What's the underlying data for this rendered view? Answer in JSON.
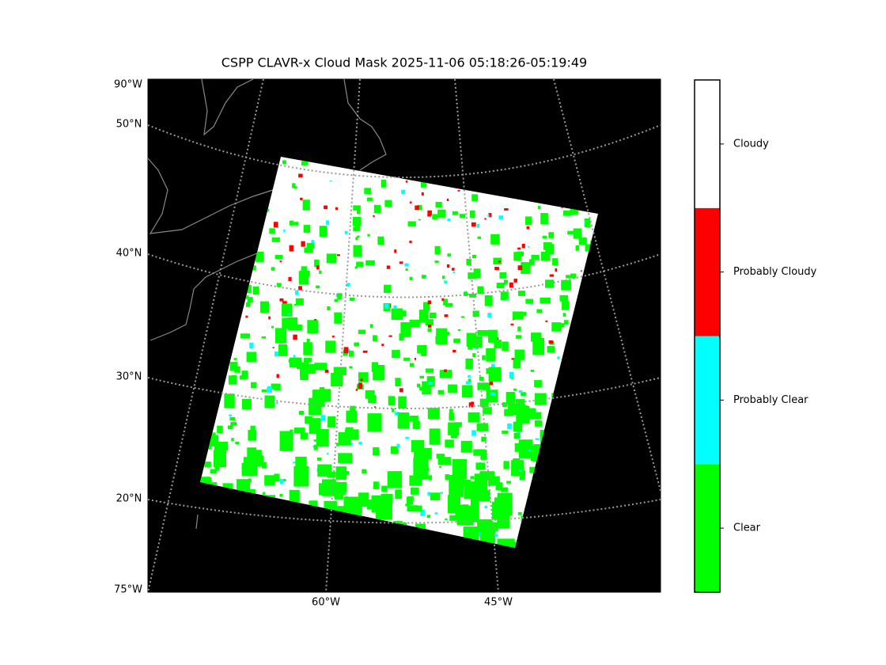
{
  "map": {
    "title": "CSPP CLAVR-x Cloud Mask 2025-11-06 05:18:26-05:19:49",
    "corner_labels": [
      "90°W",
      "75°W"
    ],
    "lat_labels": [
      "50°N",
      "40°N",
      "30°N",
      "20°N"
    ],
    "lon_labels": [
      "60°W",
      "45°W"
    ],
    "colorbar": [
      {
        "label": "Clear",
        "color": "#00ff00"
      },
      {
        "label": "Probably Clear",
        "color": "#00ffff"
      },
      {
        "label": "Probably Cloudy",
        "color": "#ff0000"
      },
      {
        "label": "Cloudy",
        "color": "#ffffff"
      }
    ]
  }
}
